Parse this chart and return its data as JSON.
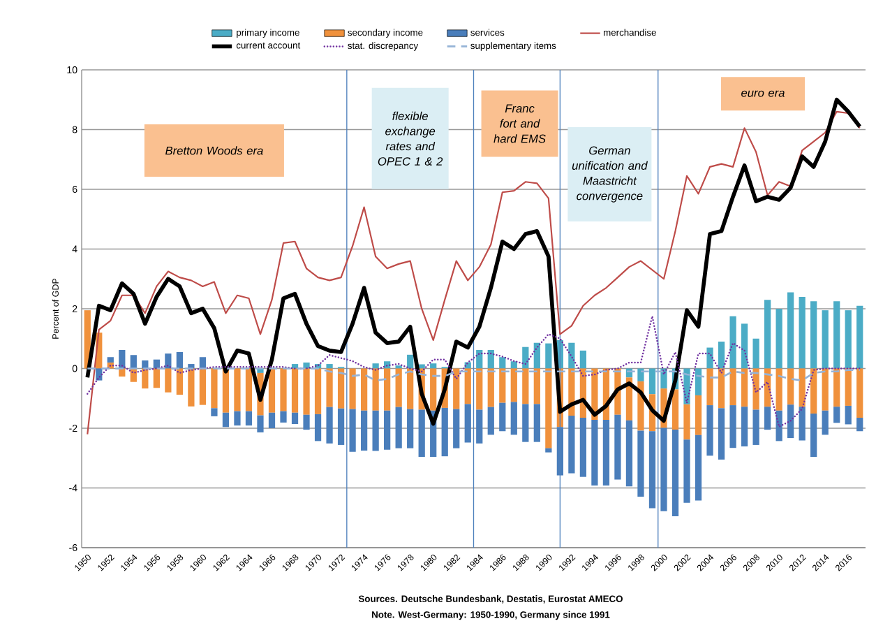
{
  "chart_data": {
    "type": "bar",
    "stacked": true,
    "ylabel": "Percent of GDP",
    "x": [
      1950,
      1951,
      1952,
      1953,
      1954,
      1955,
      1956,
      1957,
      1958,
      1959,
      1960,
      1961,
      1962,
      1963,
      1964,
      1965,
      1966,
      1967,
      1968,
      1969,
      1970,
      1971,
      1972,
      1973,
      1974,
      1975,
      1976,
      1977,
      1978,
      1979,
      1980,
      1981,
      1982,
      1983,
      1984,
      1985,
      1986,
      1987,
      1988,
      1989,
      1990,
      1991,
      1992,
      1993,
      1994,
      1995,
      1996,
      1997,
      1998,
      1999,
      2000,
      2001,
      2002,
      2003,
      2004,
      2005,
      2006,
      2007,
      2008,
      2009,
      2010,
      2011,
      2012,
      2013,
      2014,
      2015,
      2016,
      2017
    ],
    "xlim": [
      1949.5,
      2017.5
    ],
    "xticks": [
      1950,
      1952,
      1954,
      1956,
      1958,
      1960,
      1962,
      1964,
      1966,
      1968,
      1970,
      1972,
      1974,
      1976,
      1978,
      1980,
      1982,
      1984,
      1986,
      1988,
      1990,
      1992,
      1994,
      1996,
      1998,
      2000,
      2002,
      2004,
      2006,
      2008,
      2010,
      2012,
      2014,
      2016
    ],
    "ylim": [
      -6,
      10
    ],
    "yticks": [
      -6,
      -4,
      -2,
      0,
      2,
      4,
      6,
      8,
      10
    ],
    "grid": "y",
    "legend": "top",
    "series": [
      {
        "name": "primary income",
        "type": "bar",
        "color": "#4bacc6",
        "values": [
          0,
          0,
          0,
          0,
          0,
          0,
          0,
          0,
          0,
          0,
          0,
          0,
          0,
          0,
          0,
          -0.15,
          0,
          0,
          0.15,
          0.2,
          0.15,
          0.15,
          0.05,
          0,
          0,
          0.17,
          0.24,
          0.1,
          0.46,
          0.14,
          0.17,
          0.05,
          0,
          0.21,
          0.62,
          0.62,
          0.38,
          0.24,
          0.72,
          0.86,
          0.84,
          0.95,
          0.86,
          0.6,
          0,
          0,
          0,
          -0.3,
          -0.43,
          -0.86,
          -0.67,
          -0.7,
          -1.2,
          -0.9,
          0.7,
          0.9,
          1.75,
          1.5,
          1.0,
          2.3,
          2.0,
          2.55,
          2.4,
          2.25,
          1.95,
          2.25,
          1.95,
          2.1
        ]
      },
      {
        "name": "secondary income",
        "type": "bar",
        "color": "#f0913c",
        "values": [
          1.95,
          1.2,
          0.2,
          -0.27,
          -0.45,
          -0.67,
          -0.65,
          -0.8,
          -0.88,
          -1.27,
          -1.22,
          -1.33,
          -1.48,
          -1.43,
          -1.43,
          -1.42,
          -1.48,
          -1.43,
          -1.48,
          -1.55,
          -1.53,
          -1.29,
          -1.34,
          -1.36,
          -1.41,
          -1.41,
          -1.41,
          -1.29,
          -1.36,
          -1.38,
          -1.41,
          -1.32,
          -1.36,
          -1.19,
          -1.38,
          -1.29,
          -1.15,
          -1.12,
          -1.19,
          -1.19,
          -2.67,
          -1.96,
          -1.58,
          -1.65,
          -1.72,
          -1.72,
          -1.55,
          -1.44,
          -1.65,
          -1.24,
          -1.32,
          -1.35,
          -1.18,
          -1.33,
          -1.23,
          -1.33,
          -1.23,
          -1.28,
          -1.38,
          -1.28,
          -1.41,
          -1.21,
          -1.28,
          -1.51,
          -1.41,
          -1.28,
          -1.25,
          -1.65
        ]
      },
      {
        "name": "services",
        "type": "bar",
        "color": "#4a7ebb",
        "values": [
          0,
          -0.4,
          0.18,
          0.62,
          0.45,
          0.27,
          0.3,
          0.5,
          0.55,
          0.15,
          0.38,
          -0.27,
          -0.48,
          -0.48,
          -0.48,
          -0.57,
          -0.52,
          -0.38,
          -0.38,
          -0.5,
          -0.9,
          -1.22,
          -1.22,
          -1.43,
          -1.34,
          -1.35,
          -1.31,
          -1.38,
          -1.31,
          -1.58,
          -1.55,
          -1.62,
          -1.31,
          -1.29,
          -1.13,
          -0.93,
          -0.95,
          -1.1,
          -1.27,
          -1.27,
          -0.14,
          -1.62,
          -1.93,
          -1.98,
          -2.2,
          -2.2,
          -2.17,
          -2.21,
          -2.21,
          -2.58,
          -2.79,
          -2.9,
          -2.12,
          -2.19,
          -1.69,
          -1.72,
          -1.43,
          -1.33,
          -1.18,
          -0.77,
          -1.02,
          -1.12,
          -1.13,
          -1.45,
          -0.81,
          -0.54,
          -0.62,
          -0.45
        ]
      },
      {
        "name": "merchandise",
        "type": "line",
        "color": "#be4b48",
        "values": [
          -2.2,
          1.3,
          1.6,
          2.45,
          2.45,
          1.85,
          2.75,
          3.25,
          3.05,
          2.95,
          2.75,
          2.9,
          1.85,
          2.45,
          2.35,
          1.15,
          2.3,
          4.2,
          4.25,
          3.35,
          3.05,
          2.95,
          3.05,
          4.1,
          5.4,
          3.75,
          3.35,
          3.5,
          3.6,
          2.0,
          0.95,
          2.3,
          3.6,
          2.95,
          3.4,
          4.15,
          5.9,
          5.95,
          6.25,
          6.2,
          5.7,
          1.15,
          1.43,
          2.1,
          2.45,
          2.7,
          3.05,
          3.4,
          3.6,
          3.3,
          3.0,
          4.6,
          6.45,
          5.85,
          6.75,
          6.85,
          6.75,
          8.05,
          7.25,
          5.8,
          6.25,
          6.1,
          7.3,
          7.6,
          7.9,
          8.6,
          8.55,
          8.05
        ]
      },
      {
        "name": "current account",
        "type": "line",
        "color": "#000000",
        "values": [
          -0.3,
          2.1,
          1.95,
          2.85,
          2.5,
          1.5,
          2.4,
          3.0,
          2.75,
          1.85,
          2.0,
          1.35,
          -0.1,
          0.6,
          0.5,
          -1.05,
          0.3,
          2.35,
          2.5,
          1.5,
          0.75,
          0.6,
          0.55,
          1.5,
          2.7,
          1.2,
          0.85,
          0.9,
          1.4,
          -0.85,
          -1.85,
          -0.7,
          0.9,
          0.7,
          1.4,
          2.7,
          4.25,
          4.0,
          4.5,
          4.6,
          3.75,
          -1.45,
          -1.2,
          -1.05,
          -1.55,
          -1.25,
          -0.7,
          -0.5,
          -0.8,
          -1.4,
          -1.75,
          -0.4,
          1.95,
          1.4,
          4.5,
          4.6,
          5.75,
          6.8,
          5.6,
          5.75,
          5.65,
          6.05,
          7.1,
          6.75,
          7.6,
          9.0,
          8.6,
          8.1
        ]
      },
      {
        "name": "stat. discrepancy",
        "type": "line",
        "line_style": "dotted",
        "color": "#7030a0",
        "values": [
          -0.85,
          -0.3,
          0.1,
          0.1,
          -0.15,
          -0.05,
          0.0,
          0.1,
          -0.15,
          -0.05,
          0.0,
          0.05,
          0.05,
          0.05,
          0.05,
          0.05,
          0.05,
          0.05,
          0.0,
          0.0,
          0.1,
          0.45,
          0.35,
          0.25,
          0.05,
          -0.05,
          0.1,
          0.15,
          0.0,
          -0.1,
          0.3,
          0.3,
          -0.35,
          0.2,
          0.5,
          0.5,
          0.4,
          0.25,
          0.15,
          0.7,
          1.15,
          1.0,
          0.4,
          -0.25,
          -0.2,
          -0.05,
          0.0,
          0.2,
          0.2,
          1.75,
          -0.2,
          0.55,
          -1.15,
          0.5,
          0.5,
          -0.15,
          0.85,
          0.6,
          -0.8,
          -0.45,
          -1.95,
          -1.75,
          -1.35,
          -0.05,
          0.0,
          0.0,
          0.0,
          0.0
        ]
      },
      {
        "name": "supplementary items",
        "type": "line",
        "line_style": "dashed",
        "color": "#95b3d7",
        "values": [
          0,
          0,
          0,
          0,
          0,
          0,
          0,
          0,
          0,
          0,
          0,
          0,
          0,
          0,
          0,
          0,
          0,
          0,
          0,
          0,
          0,
          -0.1,
          -0.15,
          -0.25,
          -0.2,
          -0.4,
          -0.35,
          -0.2,
          -0.1,
          -0.2,
          -0.25,
          -0.25,
          -0.1,
          -0.1,
          -0.1,
          -0.1,
          -0.1,
          -0.1,
          -0.1,
          -0.1,
          -0.1,
          -0.1,
          -0.1,
          -0.1,
          -0.1,
          -0.1,
          -0.1,
          -0.1,
          -0.1,
          -0.1,
          -0.1,
          -0.1,
          -0.2,
          -0.25,
          -0.3,
          -0.3,
          -0.1,
          -0.15,
          -0.15,
          -0.2,
          -0.25,
          -0.35,
          -0.4,
          -0.15,
          -0.1,
          -0.1,
          -0.05,
          -0.05
        ]
      }
    ],
    "ref_lines": [
      {
        "axis": "x",
        "value": 1972.5,
        "color": "#4f81bd"
      },
      {
        "axis": "x",
        "value": 1983.5,
        "color": "#4f81bd"
      },
      {
        "axis": "x",
        "value": 1991,
        "color": "#4f81bd"
      },
      {
        "axis": "x",
        "value": 1999.5,
        "color": "#4f81bd"
      }
    ],
    "annotations": [
      "Bretton Woods era",
      "flexible exchange rates and OPEC 1 & 2",
      "Franc fort and hard EMS",
      "German unification and Maastricht convergence",
      "euro era",
      "Sources. Deutsche Bundesbank, Destatis, Eurostat AMECO",
      "Note. West-Germany: 1950-1990, Germany since 1991"
    ]
  }
}
